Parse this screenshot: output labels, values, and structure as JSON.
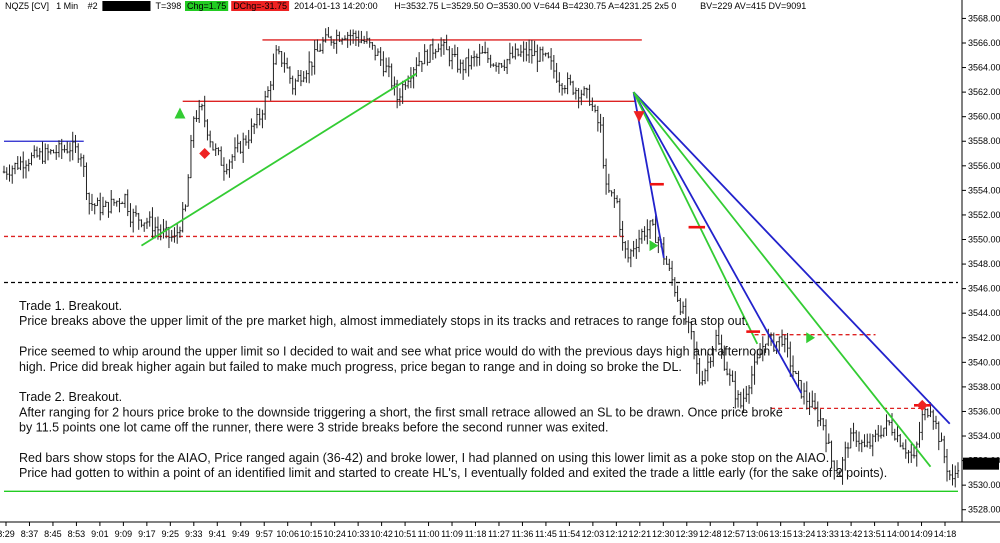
{
  "header": {
    "symbol": "NQZ5 [CV]",
    "interval": "1 Min",
    "num": "#2",
    "items": [
      {
        "text": "C=3531.75",
        "bg": "#000000",
        "fg": "#ffffff"
      },
      {
        "text": "T=398",
        "bg": "",
        "fg": "#000000"
      },
      {
        "text": "Chg=1.75",
        "bg": "#22cc22",
        "fg": "#ffffff"
      },
      {
        "text": "DChg=-31.75",
        "bg": "#ee2222",
        "fg": "#ffffff"
      },
      {
        "text": "2014-01-13 14:20:00",
        "bg": "",
        "fg": "#000000"
      },
      {
        "text": "H=3532.75 L=3529.50 O=3530.00 V=644 B=4230.75 A=4231.25 2x5 0",
        "bg": "",
        "fg": "#000000"
      },
      {
        "text": "BV=229 AV=415 DV=9091",
        "bg": "",
        "fg": "#000000"
      }
    ]
  },
  "notes": {
    "lines": [
      "Trade 1.  Breakout.",
      "Price breaks above the upper limit of the pre market high, almost immediately stops in its tracks and retraces to range for a stop out.",
      "",
      "Price seemed to whip around the upper limit so I decided to wait and see what price would do with the previous days high and afternoon",
      "high.  Price did break higher again but failed to make much progress, price began to range and in doing so broke the DL.",
      "",
      "Trade 2.  Breakout.",
      "After ranging for 2 hours price broke to the downside triggering a short, the first small retrace allowed an SL to be drawn.  Once price broke",
      "by 11.5 points one lot came off the runner, there were 3 stride breaks before the second runner was exited.",
      "",
      "Red bars show stops for the AIAO, Price ranged again (36-42) and broke lower, I had planned on using this lower limit as a poke stop on the AIAO.",
      "Price had gotten to within a point of an identified limit and started to create HL's, I eventually folded and exited the trade a little early (for the sake of 2 points)."
    ]
  },
  "chart_data": {
    "type": "ohlc",
    "title": "",
    "x_ticks": [
      "8:29",
      "8:37",
      "8:45",
      "8:53",
      "9:01",
      "9:09",
      "9:17",
      "9:25",
      "9:33",
      "9:41",
      "9:49",
      "9:57",
      "10:06",
      "10:15",
      "10:24",
      "10:33",
      "10:42",
      "10:51",
      "11:00",
      "11:09",
      "11:18",
      "11:27",
      "11:36",
      "11:45",
      "11:54",
      "12:03",
      "12:12",
      "12:21",
      "12:30",
      "12:39",
      "12:48",
      "12:57",
      "13:06",
      "13:15",
      "13:24",
      "13:33",
      "13:42",
      "13:51",
      "14:00",
      "14:09",
      "14:18"
    ],
    "y_ticks": [
      "3528.00",
      "3530.00",
      "3532.00",
      "3534.00",
      "3536.00",
      "3538.00",
      "3540.00",
      "3542.00",
      "3544.00",
      "3546.00",
      "3548.00",
      "3550.00",
      "3552.00",
      "3554.00",
      "3556.00",
      "3558.00",
      "3560.00",
      "3562.00",
      "3564.00",
      "3566.00",
      "3568.00"
    ],
    "ylim": [
      3527,
      3569.5
    ],
    "last_price": "3531.75",
    "price_path": [
      [
        0,
        3555.5
      ],
      [
        8,
        3556.5
      ],
      [
        16,
        3557
      ],
      [
        24,
        3557.5
      ],
      [
        28,
        3557
      ],
      [
        31,
        3553
      ],
      [
        36,
        3552.5
      ],
      [
        40,
        3553
      ],
      [
        44,
        3553.5
      ],
      [
        46,
        3552
      ],
      [
        52,
        3551.5
      ],
      [
        58,
        3550.5
      ],
      [
        62,
        3550
      ],
      [
        66,
        3552.5
      ],
      [
        69,
        3560
      ],
      [
        72,
        3560.5
      ],
      [
        76,
        3557.5
      ],
      [
        80,
        3556
      ],
      [
        84,
        3557
      ],
      [
        89,
        3558.5
      ],
      [
        93,
        3560
      ],
      [
        96,
        3562
      ],
      [
        99,
        3565
      ],
      [
        102,
        3564.5
      ],
      [
        105,
        3562.5
      ],
      [
        108,
        3563.5
      ],
      [
        112,
        3564.5
      ],
      [
        116,
        3566
      ],
      [
        120,
        3566.5
      ],
      [
        124,
        3566.8
      ],
      [
        128,
        3566.5
      ],
      [
        132,
        3566
      ],
      [
        136,
        3565
      ],
      [
        140,
        3563.5
      ],
      [
        143,
        3561.5
      ],
      [
        146,
        3563
      ],
      [
        150,
        3564.5
      ],
      [
        154,
        3565
      ],
      [
        158,
        3566
      ],
      [
        162,
        3565
      ],
      [
        166,
        3564
      ],
      [
        170,
        3564.5
      ],
      [
        174,
        3565
      ],
      [
        178,
        3564.5
      ],
      [
        182,
        3564.5
      ],
      [
        186,
        3565
      ],
      [
        190,
        3565.2
      ],
      [
        194,
        3565
      ],
      [
        198,
        3564.5
      ],
      [
        202,
        3563
      ],
      [
        206,
        3562.5
      ],
      [
        210,
        3562
      ],
      [
        213,
        3561.5
      ],
      [
        215,
        3560
      ],
      [
        217,
        3559
      ],
      [
        219,
        3554
      ],
      [
        221,
        3553.5
      ],
      [
        223,
        3553
      ],
      [
        225,
        3549.5
      ],
      [
        227,
        3548.5
      ],
      [
        229,
        3549.5
      ],
      [
        232,
        3550.5
      ],
      [
        235,
        3551
      ],
      [
        238,
        3550
      ],
      [
        241,
        3548
      ],
      [
        244,
        3546
      ],
      [
        247,
        3544
      ],
      [
        250,
        3542
      ],
      [
        253,
        3538.5
      ],
      [
        256,
        3540
      ],
      [
        259,
        3542
      ],
      [
        262,
        3540
      ],
      [
        265,
        3538
      ],
      [
        268,
        3536.5
      ],
      [
        271,
        3538.5
      ],
      [
        274,
        3540
      ],
      [
        277,
        3542
      ],
      [
        280,
        3541.5
      ],
      [
        283,
        3542
      ],
      [
        286,
        3540
      ],
      [
        289,
        3538
      ],
      [
        292,
        3537
      ],
      [
        295,
        3536
      ],
      [
        298,
        3535
      ],
      [
        301,
        3532
      ],
      [
        304,
        3531
      ],
      [
        307,
        3533.5
      ],
      [
        310,
        3534
      ],
      [
        313,
        3533
      ],
      [
        316,
        3533.5
      ],
      [
        319,
        3534.5
      ],
      [
        322,
        3535
      ],
      [
        325,
        3534
      ],
      [
        328,
        3533
      ],
      [
        331,
        3532
      ],
      [
        334,
        3535.5
      ],
      [
        337,
        3536.5
      ],
      [
        340,
        3534
      ],
      [
        343,
        3531.5
      ],
      [
        345,
        3530.2
      ],
      [
        347,
        3531.75
      ]
    ],
    "levels": [
      {
        "price": 3558,
        "x0": 0,
        "x1": 29,
        "style": "solid",
        "color": "#2222cc"
      },
      {
        "price": 3566.25,
        "x0": 94,
        "x1": 232,
        "style": "solid",
        "color": "#dd2222"
      },
      {
        "price": 3561.25,
        "x0": 65,
        "x1": 230,
        "style": "solid",
        "color": "#dd2222"
      },
      {
        "price": 3550.25,
        "x0": 0,
        "x1": 226,
        "style": "dashed",
        "color": "#dd2222"
      },
      {
        "price": 3546.5,
        "x0": 0,
        "x1": 347,
        "style": "dashed",
        "color": "#000000"
      },
      {
        "price": 3542.25,
        "x0": 273,
        "x1": 317,
        "style": "dashed",
        "color": "#dd2222"
      },
      {
        "price": 3536.25,
        "x0": 279,
        "x1": 335,
        "style": "dashed",
        "color": "#dd2222"
      },
      {
        "price": 3529.5,
        "x0": 0,
        "x1": 347,
        "style": "solid",
        "color": "#22cc22"
      }
    ],
    "trendlines": [
      {
        "x0": 50,
        "y0": 3549.5,
        "x1": 150,
        "y1": 3563.5,
        "color": "#33cc33"
      },
      {
        "x0": 229,
        "y0": 3562,
        "x1": 240,
        "y1": 3548.5,
        "color": "#2222cc"
      },
      {
        "x0": 229,
        "y0": 3562,
        "x1": 290,
        "y1": 3537.5,
        "color": "#2222cc"
      },
      {
        "x0": 229,
        "y0": 3562,
        "x1": 344,
        "y1": 3535,
        "color": "#2222cc"
      },
      {
        "x0": 229,
        "y0": 3562,
        "x1": 274,
        "y1": 3541.5,
        "color": "#33cc33"
      },
      {
        "x0": 229,
        "y0": 3562,
        "x1": 337,
        "y1": 3531.5,
        "color": "#33cc33"
      }
    ],
    "stop_bars": [
      {
        "x0": 235,
        "x1": 240,
        "price": 3554.5
      },
      {
        "x0": 249,
        "x1": 255,
        "price": 3551
      },
      {
        "x0": 270,
        "x1": 275,
        "price": 3542.5
      },
      {
        "x0": 331,
        "x1": 337,
        "price": 3536.5
      }
    ],
    "markers": [
      {
        "type": "triangle-up",
        "x": 64,
        "price": 3560.3,
        "color": "#33cc33"
      },
      {
        "type": "diamond",
        "x": 73,
        "price": 3557,
        "color": "#ee2222"
      },
      {
        "type": "triangle-down",
        "x": 231,
        "price": 3560,
        "color": "#ee2222"
      },
      {
        "type": "triangle-right",
        "x": 236,
        "price": 3549.5,
        "color": "#33cc33"
      },
      {
        "type": "triangle-right",
        "x": 293,
        "price": 3542,
        "color": "#33cc33"
      },
      {
        "type": "diamond",
        "x": 334,
        "price": 3536.5,
        "color": "#ee2222"
      }
    ]
  }
}
